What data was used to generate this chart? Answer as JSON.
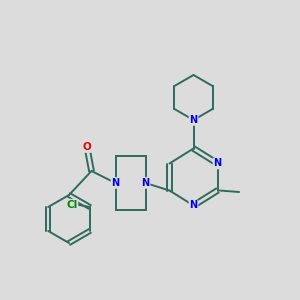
{
  "background_color": "#dcdcdc",
  "bond_color": "#2d6b5e",
  "N_color": "#0000ee",
  "O_color": "#ee0000",
  "Cl_color": "#008800",
  "figsize": [
    3.0,
    3.0
  ],
  "dpi": 100,
  "xlim": [
    0,
    10
  ],
  "ylim": [
    0,
    10
  ]
}
